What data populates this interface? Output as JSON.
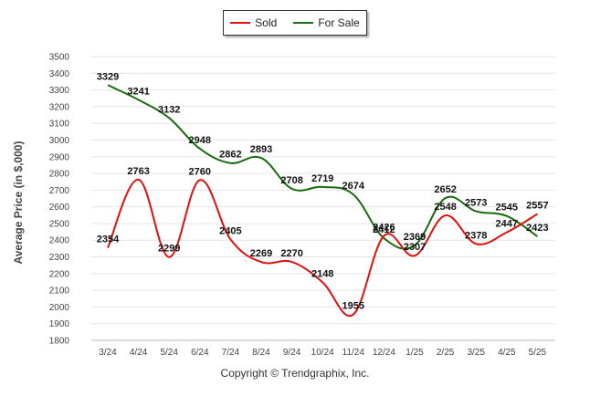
{
  "chart_data": {
    "type": "line",
    "categories": [
      "3/24",
      "4/24",
      "5/24",
      "6/24",
      "7/24",
      "8/24",
      "9/24",
      "10/24",
      "11/24",
      "12/24",
      "1/25",
      "2/25",
      "3/25",
      "4/25",
      "5/25"
    ],
    "series": [
      {
        "name": "Sold",
        "color": "#e01010",
        "values": [
          2354,
          2763,
          2299,
          2760,
          2405,
          2269,
          2270,
          2148,
          1955,
          2426,
          2307,
          2548,
          2378,
          2447,
          2557
        ],
        "labels": [
          "2354",
          "2763",
          "2299",
          "2760",
          "2405",
          "2269",
          "2270",
          "2148",
          "1955",
          "2426",
          "2307",
          "2548",
          "2378",
          "2447",
          "2557"
        ]
      },
      {
        "name": "For Sale",
        "color": "#1a6b10",
        "values": [
          3329,
          3241,
          3132,
          2948,
          2862,
          2893,
          2708,
          2719,
          2674,
          2412,
          2369,
          2652,
          2573,
          2545,
          2423
        ],
        "labels": [
          "3329",
          "3241",
          "3132",
          "2948",
          "2862",
          "2893",
          "2708",
          "2719",
          "2674",
          "2412",
          "2369",
          "2652",
          "2573",
          "2545",
          "2423"
        ]
      }
    ],
    "ylabel": "Average Price (in $,000)",
    "ylim": [
      1800,
      3500
    ],
    "yticks": [
      "1800",
      "1900",
      "2000",
      "2100",
      "2200",
      "2300",
      "2400",
      "2500",
      "2600",
      "2700",
      "2800",
      "2900",
      "3000",
      "3100",
      "3200",
      "3300",
      "3400",
      "3500"
    ],
    "grid": true,
    "legend_position": "top-center"
  },
  "legend": {
    "sold_label": "Sold",
    "for_sale_label": "For Sale"
  },
  "footer": {
    "copyright": "Copyright © Trendgraphix, Inc."
  }
}
